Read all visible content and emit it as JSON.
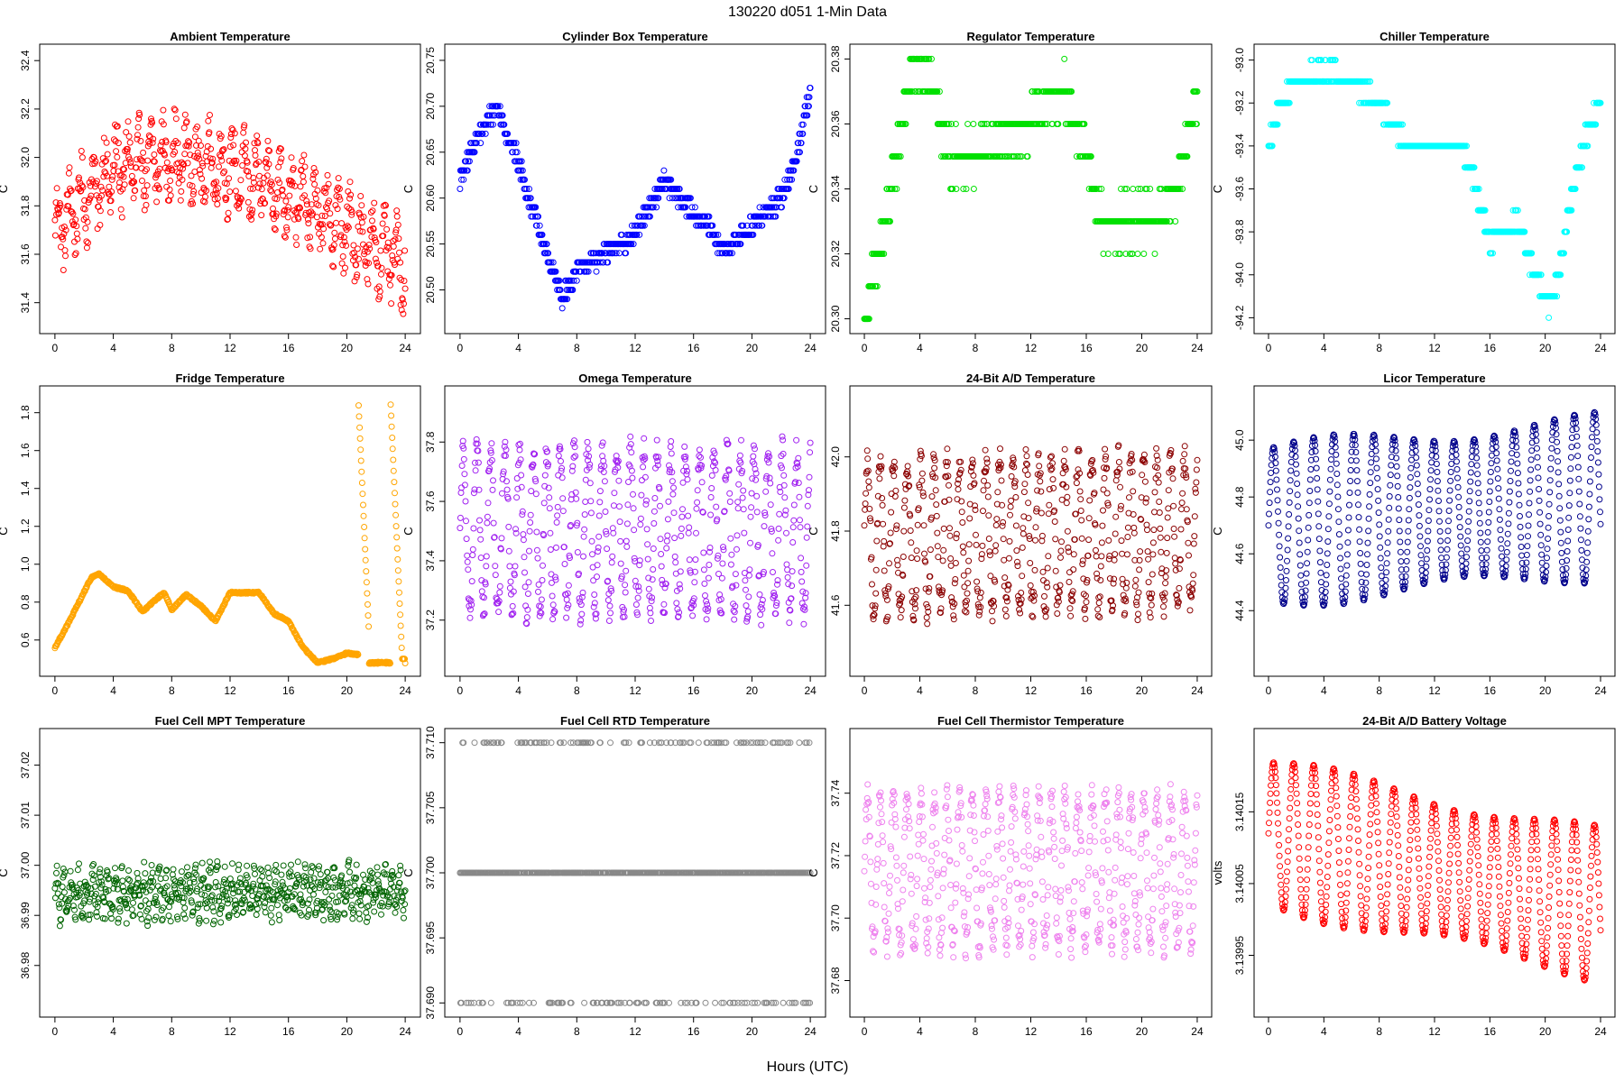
{
  "figure": {
    "title": "130220    d051    1-Min Data",
    "xlabel": "Hours (UTC)"
  },
  "chart_data": [
    {
      "type": "scatter",
      "title": "Ambient Temperature",
      "ylabel": "C",
      "color": "#ff0000",
      "xlim": [
        0,
        24
      ],
      "ylim": [
        31.32,
        32.42
      ],
      "xticks": [
        0,
        4,
        8,
        12,
        16,
        20,
        24
      ],
      "xtick_labels": [
        "0",
        "4",
        "8",
        "12",
        "16",
        "20",
        "24"
      ],
      "yticks": [
        31.4,
        31.6,
        31.8,
        32.0,
        32.2,
        32.4
      ],
      "ytick_labels": [
        "31.4",
        "31.6",
        "31.8",
        "32.0",
        "32.2",
        "32.4"
      ],
      "pattern": "noisy",
      "trend": [
        [
          0,
          31.7
        ],
        [
          4,
          31.95
        ],
        [
          8,
          32.0
        ],
        [
          12,
          31.95
        ],
        [
          16,
          31.85
        ],
        [
          20,
          31.7
        ],
        [
          24,
          31.55
        ]
      ],
      "amp": 0.2,
      "period": 0.8
    },
    {
      "type": "scatter",
      "title": "Cylinder Box Temperature",
      "ylabel": "C",
      "color": "#0000ff",
      "xlim": [
        0,
        24
      ],
      "ylim": [
        20.465,
        20.755
      ],
      "xticks": [
        0,
        4,
        8,
        12,
        16,
        20,
        24
      ],
      "xtick_labels": [
        "0",
        "4",
        "8",
        "12",
        "16",
        "20",
        "24"
      ],
      "yticks": [
        20.5,
        20.55,
        20.6,
        20.65,
        20.7,
        20.75
      ],
      "ytick_labels": [
        "20.50",
        "20.55",
        "20.60",
        "20.65",
        "20.70",
        "20.75"
      ],
      "pattern": "smooth",
      "step": 0.01,
      "trend": [
        [
          0,
          20.62
        ],
        [
          1,
          20.66
        ],
        [
          2.5,
          20.7
        ],
        [
          4,
          20.64
        ],
        [
          5.5,
          20.56
        ],
        [
          7,
          20.49
        ],
        [
          8,
          20.52
        ],
        [
          10,
          20.54
        ],
        [
          12,
          20.56
        ],
        [
          14,
          20.62
        ],
        [
          15,
          20.6
        ],
        [
          17,
          20.57
        ],
        [
          18,
          20.54
        ],
        [
          20,
          20.57
        ],
        [
          22,
          20.6
        ],
        [
          23,
          20.64
        ],
        [
          24,
          20.72
        ]
      ],
      "amp": 0.02,
      "period": 1.0
    },
    {
      "type": "scatter",
      "title": "Regulator Temperature",
      "ylabel": "C",
      "color": "#00e000",
      "xlim": [
        0,
        24
      ],
      "ylim": [
        20.299,
        20.381
      ],
      "xticks": [
        0,
        4,
        8,
        12,
        16,
        20,
        24
      ],
      "xtick_labels": [
        "0",
        "4",
        "8",
        "12",
        "16",
        "20",
        "24"
      ],
      "yticks": [
        20.3,
        20.32,
        20.34,
        20.36,
        20.38
      ],
      "ytick_labels": [
        "20.30",
        "20.32",
        "20.34",
        "20.36",
        "20.38"
      ],
      "pattern": "smooth",
      "step": 0.01,
      "trend": [
        [
          0,
          20.3
        ],
        [
          1,
          20.32
        ],
        [
          2,
          20.34
        ],
        [
          3,
          20.37
        ],
        [
          4.5,
          20.38
        ],
        [
          6,
          20.35
        ],
        [
          8,
          20.35
        ],
        [
          12,
          20.36
        ],
        [
          14.5,
          20.37
        ],
        [
          16,
          20.35
        ],
        [
          17,
          20.33
        ],
        [
          19,
          20.33
        ],
        [
          21,
          20.33
        ],
        [
          22.5,
          20.34
        ],
        [
          24,
          20.37
        ]
      ],
      "amp": 0.012,
      "period": 1.5
    },
    {
      "type": "scatter",
      "title": "Chiller Temperature",
      "ylabel": "C",
      "color": "#00ffff",
      "xlim": [
        0,
        24
      ],
      "ylim": [
        -94.22,
        -92.98
      ],
      "xticks": [
        0,
        4,
        8,
        12,
        16,
        20,
        24
      ],
      "xtick_labels": [
        "0",
        "4",
        "8",
        "12",
        "16",
        "20",
        "24"
      ],
      "yticks": [
        -94.2,
        -94.0,
        -93.8,
        -93.6,
        -93.4,
        -93.2,
        -93.0
      ],
      "ytick_labels": [
        "-94.2",
        "-94.0",
        "-93.8",
        "-93.6",
        "-93.4",
        "-93.2",
        "-93.0"
      ],
      "pattern": "smooth",
      "step": 0.1,
      "trend": [
        [
          0,
          -93.4
        ],
        [
          1,
          -93.2
        ],
        [
          2,
          -93.1
        ],
        [
          4,
          -93.05
        ],
        [
          6,
          -93.1
        ],
        [
          8,
          -93.2
        ],
        [
          10,
          -93.4
        ],
        [
          14,
          -93.4
        ],
        [
          15,
          -93.6
        ],
        [
          16,
          -93.85
        ],
        [
          18,
          -93.75
        ],
        [
          19,
          -93.95
        ],
        [
          20.3,
          -94.15
        ],
        [
          21,
          -94.0
        ],
        [
          22,
          -93.6
        ],
        [
          23,
          -93.35
        ],
        [
          24,
          -93.2
        ]
      ],
      "amp": 0.06,
      "period": 2.0
    },
    {
      "type": "scatter",
      "title": "Fridge Temperature",
      "ylabel": "C",
      "color": "#ffa500",
      "xlim": [
        0,
        24
      ],
      "ylim": [
        0.47,
        1.88
      ],
      "xticks": [
        0,
        4,
        8,
        12,
        16,
        20,
        24
      ],
      "xtick_labels": [
        "0",
        "4",
        "8",
        "12",
        "16",
        "20",
        "24"
      ],
      "yticks": [
        0.6,
        0.8,
        1.0,
        1.2,
        1.4,
        1.6,
        1.8
      ],
      "ytick_labels": [
        "0.6",
        "0.8",
        "1.0",
        "1.2",
        "1.4",
        "1.6",
        "1.8"
      ],
      "pattern": "fridge",
      "trend": [
        [
          0,
          0.56
        ],
        [
          1,
          0.7
        ],
        [
          2.5,
          0.93
        ],
        [
          3,
          0.95
        ],
        [
          4,
          0.88
        ],
        [
          5,
          0.86
        ],
        [
          6,
          0.75
        ],
        [
          7,
          0.82
        ],
        [
          7.5,
          0.85
        ],
        [
          8,
          0.76
        ],
        [
          9,
          0.84
        ],
        [
          10,
          0.78
        ],
        [
          11,
          0.7
        ],
        [
          12,
          0.85
        ],
        [
          14,
          0.85
        ],
        [
          15,
          0.74
        ],
        [
          16,
          0.7
        ],
        [
          17,
          0.56
        ],
        [
          18,
          0.48
        ],
        [
          19,
          0.5
        ],
        [
          20,
          0.53
        ],
        [
          21,
          0.52
        ],
        [
          21.5,
          0.48
        ],
        [
          24,
          0.48
        ]
      ],
      "amp": 0.01,
      "period": 1.0
    },
    {
      "type": "scatter",
      "title": "Omega Temperature",
      "ylabel": "C",
      "color": "#a020f0",
      "xlim": [
        0,
        24
      ],
      "ylim": [
        37.05,
        37.95
      ],
      "xticks": [
        0,
        4,
        8,
        12,
        16,
        20,
        24
      ],
      "xtick_labels": [
        "0",
        "4",
        "8",
        "12",
        "16",
        "20",
        "24"
      ],
      "yticks": [
        37.2,
        37.4,
        37.6,
        37.8
      ],
      "ytick_labels": [
        "37.2",
        "37.4",
        "37.6",
        "37.8"
      ],
      "pattern": "osc",
      "trend": [
        [
          0,
          37.5
        ],
        [
          24,
          37.5
        ]
      ],
      "amp": 0.32,
      "period": 0.95
    },
    {
      "type": "scatter",
      "title": "24-Bit A/D Temperature",
      "ylabel": "C",
      "color": "#8b0000",
      "xlim": [
        0,
        24
      ],
      "ylim": [
        41.44,
        42.16
      ],
      "xticks": [
        0,
        4,
        8,
        12,
        16,
        20,
        24
      ],
      "xtick_labels": [
        "0",
        "4",
        "8",
        "12",
        "16",
        "20",
        "24"
      ],
      "yticks": [
        41.6,
        41.8,
        42.0
      ],
      "ytick_labels": [
        "41.6",
        "41.8",
        "42.0"
      ],
      "pattern": "osc",
      "trend": [
        [
          0,
          41.78
        ],
        [
          24,
          41.8
        ]
      ],
      "amp": 0.24,
      "period": 0.95
    },
    {
      "type": "scatter",
      "title": "Licor Temperature",
      "ylabel": "C",
      "color": "#00008b",
      "xlim": [
        0,
        24
      ],
      "ylim": [
        44.21,
        45.15
      ],
      "xticks": [
        0,
        4,
        8,
        12,
        16,
        20,
        24
      ],
      "xtick_labels": [
        "0",
        "4",
        "8",
        "12",
        "16",
        "20",
        "24"
      ],
      "yticks": [
        44.4,
        44.6,
        44.8,
        45.0
      ],
      "ytick_labels": [
        "44.4",
        "44.6",
        "44.8",
        "45.0"
      ],
      "pattern": "sine",
      "trend": [
        [
          0,
          44.7
        ],
        [
          24,
          44.8
        ]
      ],
      "amp": 0.3,
      "period": 1.45
    },
    {
      "type": "scatter",
      "title": "Fuel Cell MPT Temperature",
      "ylabel": "C",
      "color": "#006400",
      "xlim": [
        0,
        24
      ],
      "ylim": [
        36.972,
        37.025
      ],
      "xticks": [
        0,
        4,
        8,
        12,
        16,
        20,
        24
      ],
      "xtick_labels": [
        "0",
        "4",
        "8",
        "12",
        "16",
        "20",
        "24"
      ],
      "yticks": [
        36.98,
        36.99,
        37.0,
        37.01,
        37.02
      ],
      "ytick_labels": [
        "36.98",
        "36.99",
        "37.00",
        "37.01",
        "37.02"
      ],
      "pattern": "noisy",
      "trend": [
        [
          0,
          36.994
        ],
        [
          24,
          36.995
        ]
      ],
      "amp": 0.006,
      "period": 0.5
    },
    {
      "type": "scatter",
      "title": "Fuel Cell RTD Temperature",
      "ylabel": "C",
      "color": "#888888",
      "xlim": [
        0,
        24
      ],
      "ylim": [
        37.6898,
        37.7102
      ],
      "xticks": [
        0,
        4,
        8,
        12,
        16,
        20,
        24
      ],
      "xtick_labels": [
        "0",
        "4",
        "8",
        "12",
        "16",
        "20",
        "24"
      ],
      "yticks": [
        37.69,
        37.695,
        37.7,
        37.705,
        37.71
      ],
      "ytick_labels": [
        "37.690",
        "37.695",
        "37.700",
        "37.705",
        "37.710"
      ],
      "pattern": "levels",
      "levels": [
        37.69,
        37.7,
        37.71
      ],
      "trend": [
        [
          0,
          37.7
        ],
        [
          24,
          37.7
        ]
      ],
      "amp": 0,
      "period": 1
    },
    {
      "type": "scatter",
      "title": "Fuel Cell Thermistor Temperature",
      "ylabel": "C",
      "color": "#ee82ee",
      "xlim": [
        0,
        24
      ],
      "ylim": [
        37.672,
        37.757
      ],
      "xticks": [
        0,
        4,
        8,
        12,
        16,
        20,
        24
      ],
      "xtick_labels": [
        "0",
        "4",
        "8",
        "12",
        "16",
        "20",
        "24"
      ],
      "yticks": [
        37.68,
        37.7,
        37.72,
        37.74
      ],
      "ytick_labels": [
        "37.68",
        "37.70",
        "37.72",
        "37.74"
      ],
      "pattern": "osc",
      "trend": [
        [
          0,
          37.715
        ],
        [
          24,
          37.715
        ]
      ],
      "amp": 0.028,
      "period": 0.95
    },
    {
      "type": "scatter",
      "title": "24-Bit A/D Battery Voltage",
      "ylabel": "volts",
      "color": "#ff0000",
      "xlim": [
        0,
        24
      ],
      "ylim": [
        3.13988,
        3.14025
      ],
      "xticks": [
        0,
        4,
        8,
        12,
        16,
        20,
        24
      ],
      "xtick_labels": [
        "0",
        "4",
        "8",
        "12",
        "16",
        "20",
        "24"
      ],
      "yticks": [
        3.13995,
        3.14005,
        3.14015
      ],
      "ytick_labels": [
        "3.13995",
        "3.14005",
        "3.14015"
      ],
      "pattern": "sine",
      "trend": [
        [
          0,
          3.14012
        ],
        [
          12,
          3.14007
        ],
        [
          24,
          3.14002
        ]
      ],
      "amp": 0.00011,
      "period": 1.45
    }
  ]
}
